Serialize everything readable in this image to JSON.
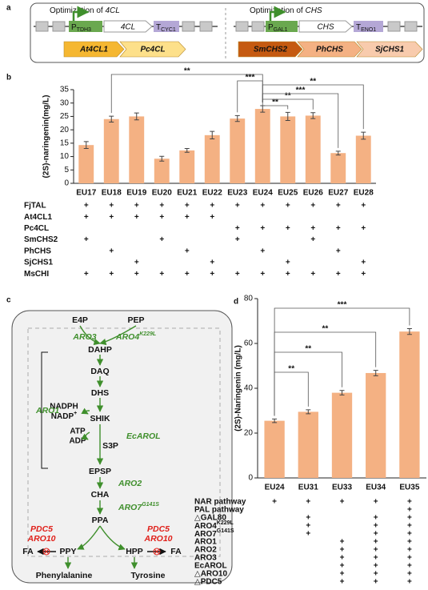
{
  "panel_labels": [
    "a",
    "b",
    "c",
    "d"
  ],
  "panel_a": {
    "left": {
      "title": {
        "text": "Optimization of ",
        "em": "4CL"
      },
      "promoter": {
        "text": "P",
        "sub": "TDH3"
      },
      "gene": "4CL",
      "terminator": {
        "text": "T",
        "sub": "CYC1"
      },
      "variants": [
        "At4CL1",
        "Pc4CL"
      ]
    },
    "right": {
      "title": {
        "text": "Optimization of ",
        "em": "CHS"
      },
      "promoter": {
        "text": "P",
        "sub": "GAL1"
      },
      "gene": "CHS",
      "terminator": {
        "text": "T",
        "sub": "ENO1"
      },
      "variants": [
        "SmCHS2",
        "PhCHS",
        "SjCHS1"
      ]
    }
  },
  "panel_c": {
    "nodes": [
      "E4P",
      "PEP",
      "DAHP",
      "DAQ",
      "DHS",
      "SHIK",
      "S3P",
      "EPSP",
      "CHA",
      "PPA",
      "PPY",
      "HPP",
      "FA",
      "FA",
      "Phenylalanine",
      "Tyrosine"
    ],
    "cofactors": [
      "NADPH",
      {
        "text": "NADP",
        "sup": "+"
      },
      "ATP",
      "ADP"
    ],
    "enzymes": [
      "ARO3",
      {
        "text": "ARO4",
        "sup": "K229L"
      },
      "ARO1",
      "EcAROL",
      "ARO2",
      {
        "text": "ARO7",
        "sup": "G141S"
      }
    ],
    "knockouts": [
      [
        "PDC5",
        "ARO10"
      ],
      [
        "PDC5",
        "ARO10"
      ]
    ]
  },
  "chart_data": [
    {
      "type": "bar",
      "y_label": "(2S)-naringenin(mg/L)",
      "categories": [
        "EU17",
        "EU18",
        "EU19",
        "EU20",
        "EU21",
        "EU22",
        "EU23",
        "EU24",
        "EU25",
        "EU26",
        "EU27",
        "EU28"
      ],
      "values": [
        14.3,
        24,
        25,
        9.2,
        12.3,
        18,
        24.2,
        27.8,
        25,
        25.3,
        11.3,
        17.8
      ],
      "errors": [
        1.3,
        1.1,
        1.3,
        0.9,
        0.7,
        1.4,
        1.1,
        1.2,
        1.5,
        1.1,
        0.7,
        1.3
      ],
      "color": "#f4b183",
      "ylim": [
        0,
        35
      ],
      "yticks": [
        0,
        5,
        10,
        15,
        20,
        25,
        30,
        35
      ],
      "grid": false,
      "significance": [
        {
          "from": "EU18",
          "to": "EU24",
          "label": "**"
        },
        {
          "from": "EU23",
          "to": "EU24",
          "label": "***"
        },
        {
          "from": "EU24",
          "to": "EU25",
          "label": "**"
        },
        {
          "from": "EU24",
          "to": "EU26",
          "label": "**"
        },
        {
          "from": "EU24",
          "to": "EU27",
          "label": "***"
        },
        {
          "from": "EU24",
          "to": "EU28",
          "label": "**"
        }
      ],
      "table": [
        {
          "label": "FjTAL",
          "marks": [
            "+",
            "+",
            "+",
            "+",
            "+",
            "+",
            "+",
            "+",
            "+",
            "+",
            "+",
            "+"
          ]
        },
        {
          "label": "At4CL1",
          "marks": [
            "+",
            "+",
            "+",
            "+",
            "+",
            "+",
            null,
            null,
            null,
            null,
            null,
            null
          ]
        },
        {
          "label": "Pc4CL",
          "marks": [
            null,
            null,
            null,
            null,
            null,
            null,
            "+",
            "+",
            "+",
            "+",
            "+",
            "+"
          ]
        },
        {
          "label": "SmCHS2",
          "marks": [
            "+",
            null,
            null,
            "+",
            null,
            null,
            "+",
            null,
            null,
            "+",
            null,
            null
          ]
        },
        {
          "label": "PhCHS",
          "marks": [
            null,
            "+",
            null,
            null,
            "+",
            null,
            null,
            "+",
            null,
            null,
            "+",
            null
          ]
        },
        {
          "label": "SjCHS1",
          "marks": [
            null,
            null,
            "+",
            null,
            null,
            "+",
            null,
            null,
            "+",
            null,
            null,
            "+"
          ]
        },
        {
          "label": "MsCHI",
          "marks": [
            "+",
            "+",
            "+",
            "+",
            "+",
            "+",
            "+",
            "+",
            "+",
            "+",
            "+",
            "+"
          ]
        }
      ]
    },
    {
      "type": "bar",
      "y_label": "(2S)-Naringenin (mg/L)",
      "categories": [
        "EU24",
        "EU31",
        "EU33",
        "EU34",
        "EU35"
      ],
      "values": [
        25.5,
        29.5,
        38,
        46.8,
        65.3
      ],
      "errors": [
        0.8,
        0.9,
        1,
        1.2,
        1.3
      ],
      "color": "#f4b183",
      "ylim": [
        0,
        80
      ],
      "yticks": [
        0,
        20,
        40,
        60,
        80
      ],
      "grid": false,
      "significance": [
        {
          "from": "EU24",
          "to": "EU31",
          "label": "**"
        },
        {
          "from": "EU24",
          "to": "EU33",
          "label": "**"
        },
        {
          "from": "EU24",
          "to": "EU34",
          "label": "**"
        },
        {
          "from": "EU24",
          "to": "EU35",
          "label": "***"
        }
      ],
      "table": [
        {
          "label": "NAR pathway",
          "marks": [
            "+",
            "+",
            "+",
            "+",
            "+"
          ]
        },
        {
          "label": "PAL pathway",
          "marks": [
            null,
            null,
            null,
            null,
            "+"
          ]
        },
        {
          "label": "△GAL80",
          "marks": [
            null,
            "+",
            null,
            "+",
            "+"
          ]
        },
        {
          "label": {
            "text": "ARO4",
            "sup": "K229L"
          },
          "marks": [
            null,
            "+",
            null,
            "+",
            "+"
          ]
        },
        {
          "label": {
            "text": "ARO7",
            "sup": "G141S"
          },
          "marks": [
            null,
            "+",
            null,
            "+",
            "+"
          ]
        },
        {
          "label": "ARO1",
          "marks": [
            null,
            null,
            "+",
            "+",
            "+"
          ]
        },
        {
          "label": "ARO2",
          "marks": [
            null,
            null,
            "+",
            "+",
            "+"
          ]
        },
        {
          "label": "ARO3",
          "marks": [
            null,
            null,
            "+",
            "+",
            "+"
          ]
        },
        {
          "label": "EcAROL",
          "marks": [
            null,
            null,
            "+",
            "+",
            "+"
          ]
        },
        {
          "label": "△ARO10",
          "marks": [
            null,
            null,
            "+",
            "+",
            "+"
          ]
        },
        {
          "label": "△PDC5",
          "marks": [
            null,
            null,
            "+",
            "+",
            "+"
          ]
        }
      ]
    }
  ]
}
